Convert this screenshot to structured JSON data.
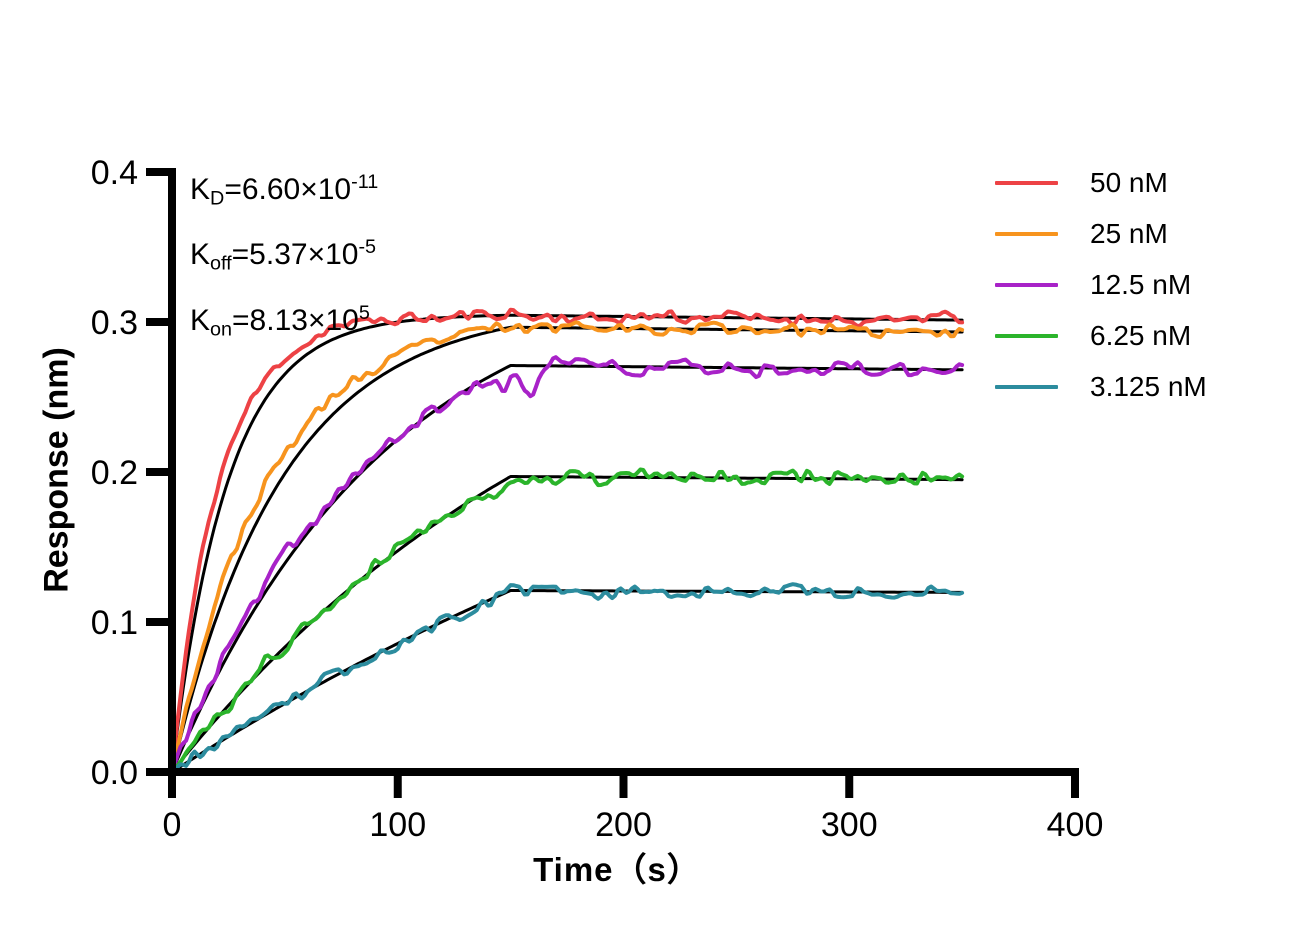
{
  "chart_data": {
    "type": "line",
    "title": "",
    "xlabel": "Time（s）",
    "ylabel": "Response (nm)",
    "xlim": [
      0,
      400
    ],
    "ylim": [
      0,
      0.4
    ],
    "xticks": [
      "0",
      "100",
      "200",
      "300",
      "400"
    ],
    "yticks": [
      "0.0",
      "0.1",
      "0.2",
      "0.3",
      "0.4"
    ],
    "grid": false,
    "legend_position": "right-outside",
    "association_end_s": 150,
    "trace_end_s": 350,
    "koff_per_s": 5.37e-05,
    "fit_color": "#000000",
    "series": [
      {
        "label": "50 nM",
        "color": "#ED4245",
        "plateau_nm": 0.3045,
        "kobs_fit": 0.0407,
        "kobs_data": 0.048,
        "noise_nm": 0.0042,
        "seed": 11,
        "artifacts": []
      },
      {
        "label": "25 nM",
        "color": "#F7941E",
        "plateau_nm": 0.2965,
        "kobs_fit": 0.0204,
        "kobs_data": 0.0236,
        "noise_nm": 0.0042,
        "seed": 23,
        "artifacts": []
      },
      {
        "label": "12.5 nM",
        "color": "#A822C8",
        "plateau_nm": 0.271,
        "kobs_fit": 0.0104,
        "kobs_data": 0.0113,
        "noise_nm": 0.005,
        "seed": 37,
        "artifacts": [
          {
            "t": 157,
            "w": 5,
            "a": -0.02
          },
          {
            "t": 147,
            "w": 4,
            "a": -0.012
          }
        ]
      },
      {
        "label": "6.25 nM",
        "color": "#2BB42B",
        "plateau_nm": 0.197,
        "kobs_fit": 0.0052,
        "kobs_data": 0.0055,
        "noise_nm": 0.005,
        "seed": 41,
        "artifacts": [
          {
            "t": 143,
            "w": 4,
            "a": -0.01
          }
        ]
      },
      {
        "label": "3.125 nM",
        "color": "#2C8C9E",
        "plateau_nm": 0.121,
        "kobs_fit": 0.00256,
        "kobs_data": 0.0026,
        "noise_nm": 0.0042,
        "seed": 53,
        "artifacts": []
      }
    ],
    "annotation": {
      "lines": [
        {
          "name": "kd-value",
          "segments": [
            {
              "t": "K"
            },
            {
              "t": "D",
              "v": "sub"
            },
            {
              "t": "=6.60×10"
            },
            {
              "t": "-11",
              "v": "sup"
            }
          ]
        },
        {
          "name": "koff-value",
          "segments": [
            {
              "t": "K"
            },
            {
              "t": "off",
              "v": "sub"
            },
            {
              "t": "=5.37×10"
            },
            {
              "t": "-5",
              "v": "sup"
            }
          ]
        },
        {
          "name": "kon-value",
          "segments": [
            {
              "t": "K"
            },
            {
              "t": "on",
              "v": "sub"
            },
            {
              "t": "=8.13×10"
            },
            {
              "t": "5",
              "v": "sup"
            }
          ]
        }
      ]
    }
  }
}
